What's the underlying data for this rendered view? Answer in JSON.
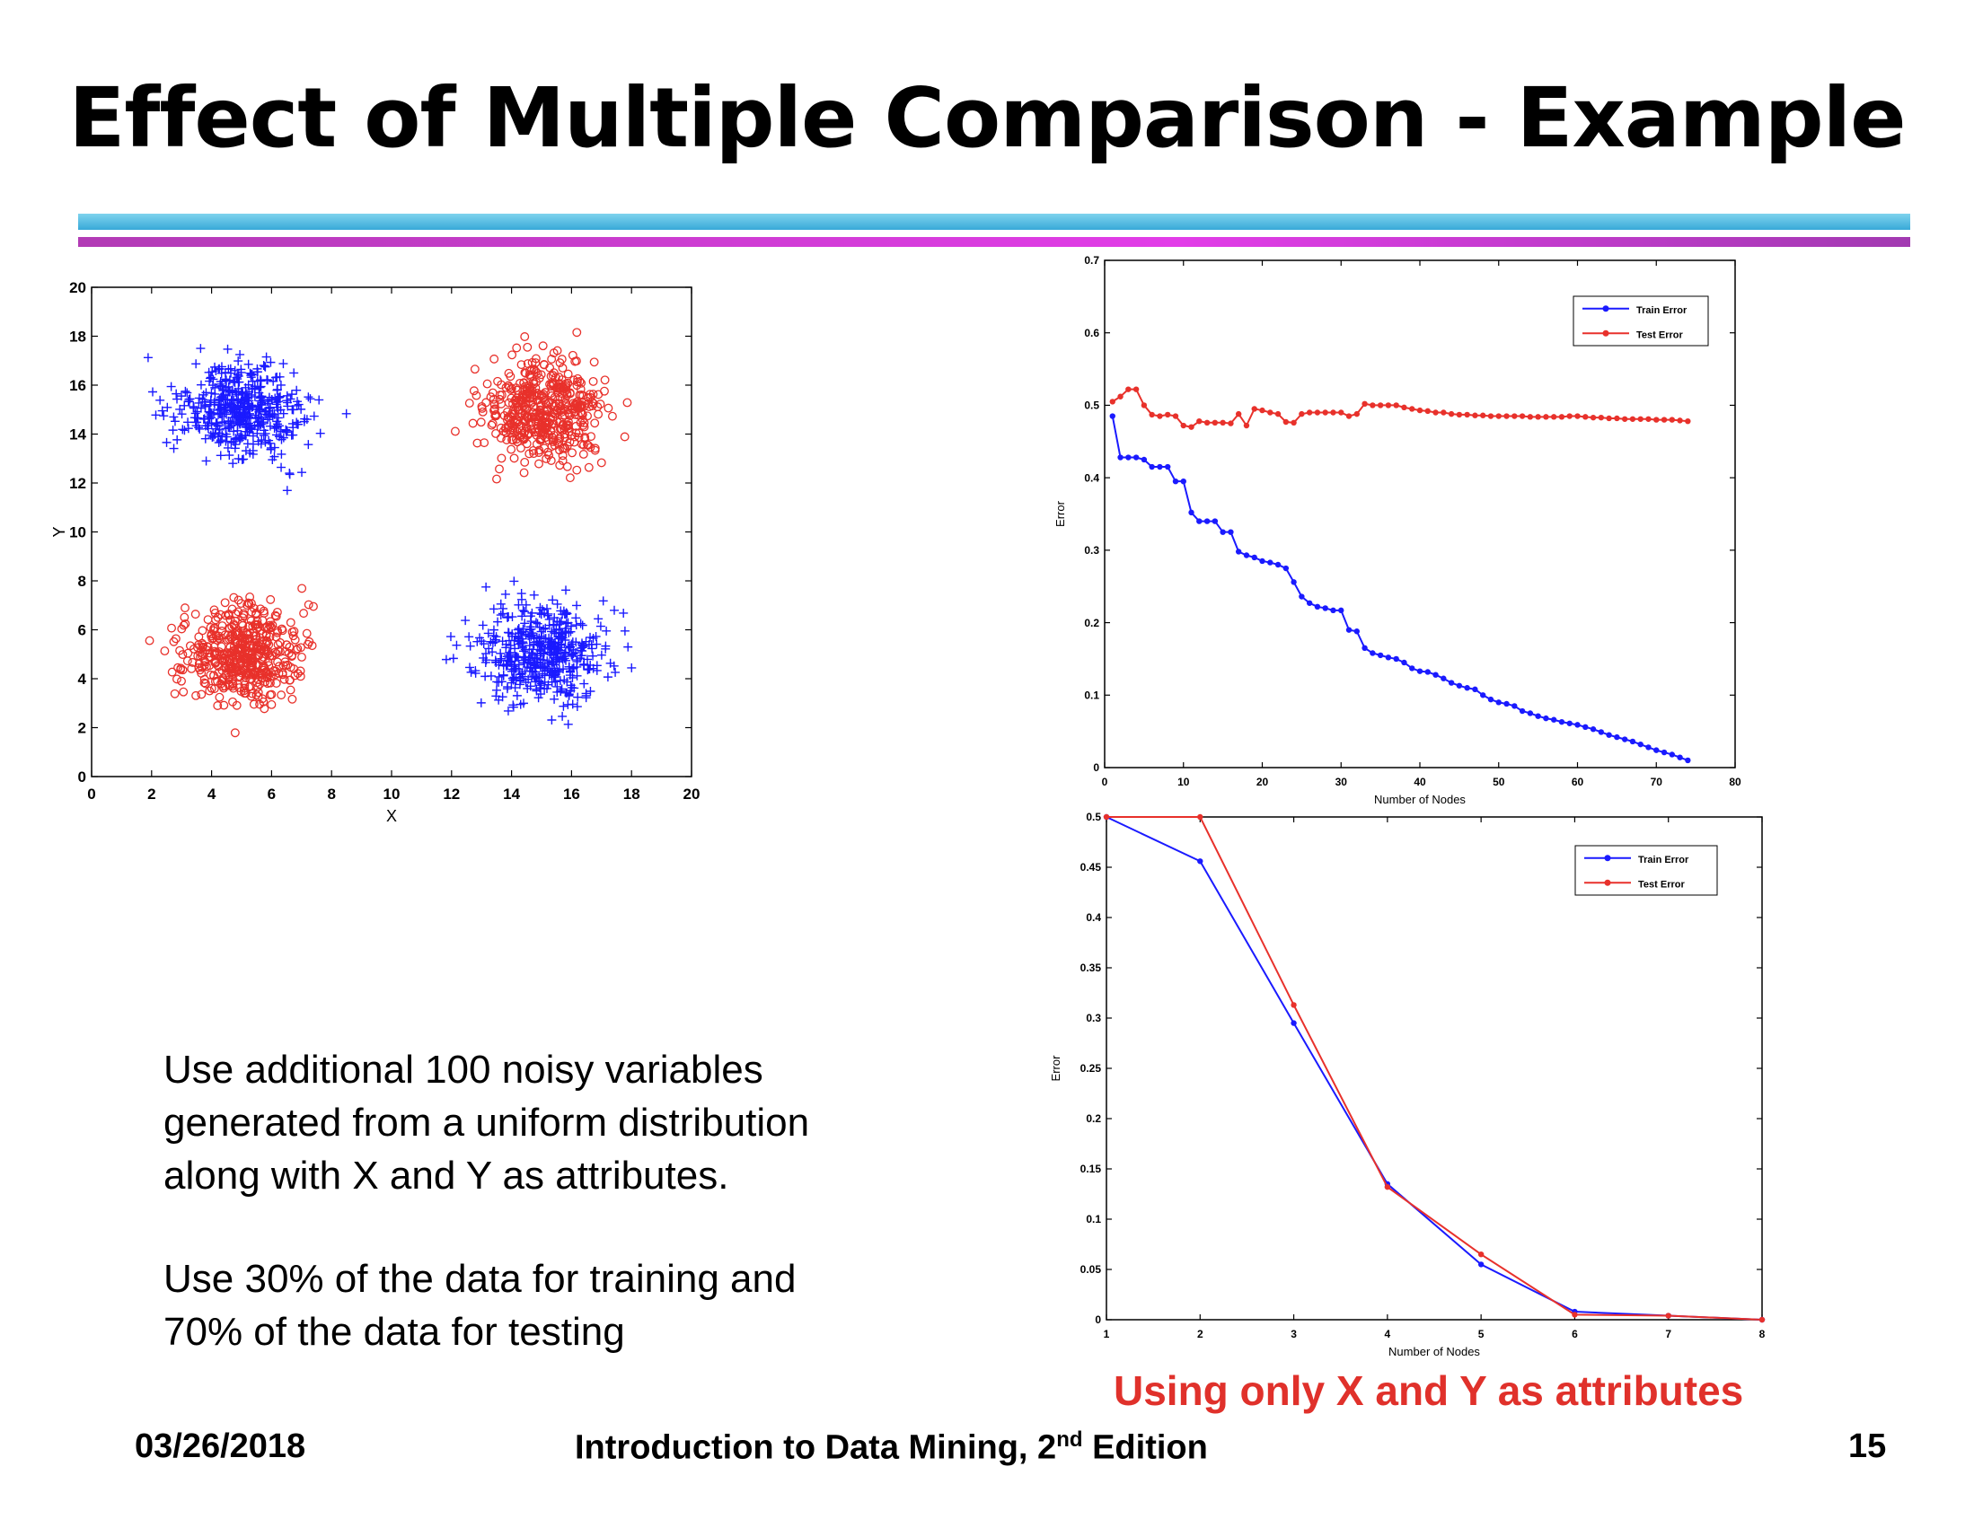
{
  "slide": {
    "title": "Effect of Multiple Comparison - Example",
    "paragraph1": [
      "Use additional 100 noisy variables",
      "generated from a uniform distribution",
      "along with X and Y as attributes."
    ],
    "paragraph2": [
      "Use 30% of the data for training and",
      "70% of the data for testing"
    ],
    "caption": "Using only X and Y as attributes",
    "footer": {
      "date": "03/26/2018",
      "course": "Introduction to Data Mining, 2",
      "course_sup": "nd",
      "course_suffix": " Edition",
      "page": "15"
    }
  },
  "colors": {
    "blue": "#1a1aff",
    "red": "#e8312b"
  },
  "chart_data": [
    {
      "type": "scatter",
      "title": "",
      "xlabel": "X",
      "ylabel": "Y",
      "xlim": [
        0,
        20
      ],
      "ylim": [
        0,
        20
      ],
      "xticks": [
        0,
        2,
        4,
        6,
        8,
        10,
        12,
        14,
        16,
        18,
        20
      ],
      "yticks": [
        0,
        2,
        4,
        6,
        8,
        10,
        12,
        14,
        16,
        18,
        20
      ],
      "grid": false,
      "series": [
        {
          "marker": "plus",
          "color": "#1a1aff",
          "clusters": [
            {
              "center": [
                5,
                15
              ],
              "sd": 1,
              "n": 500
            },
            {
              "center": [
                15,
                5
              ],
              "sd": 1,
              "n": 500
            }
          ]
        },
        {
          "marker": "circle",
          "color": "#e8312b",
          "clusters": [
            {
              "center": [
                15,
                15
              ],
              "sd": 1,
              "n": 500
            },
            {
              "center": [
                5,
                5
              ],
              "sd": 1,
              "n": 500
            }
          ]
        }
      ]
    },
    {
      "type": "line",
      "title": "",
      "xlabel": "Number of Nodes",
      "ylabel": "Error",
      "xlim": [
        0,
        80
      ],
      "ylim": [
        0,
        0.7
      ],
      "xticks": [
        0,
        10,
        20,
        30,
        40,
        50,
        60,
        70,
        80
      ],
      "yticks": [
        0,
        0.1,
        0.2,
        0.3,
        0.4,
        0.5,
        0.6,
        0.7
      ],
      "ytick_labels": [
        "0",
        "0.1",
        "0.2",
        "0.3",
        "0.4",
        "0.5",
        "0.6",
        "0.7"
      ],
      "legend": "top-right",
      "x": [
        1,
        2,
        3,
        4,
        5,
        6,
        7,
        8,
        9,
        10,
        11,
        12,
        13,
        14,
        15,
        16,
        17,
        18,
        19,
        20,
        21,
        22,
        23,
        24,
        25,
        26,
        27,
        28,
        29,
        30,
        31,
        32,
        33,
        34,
        35,
        36,
        37,
        38,
        39,
        40,
        41,
        42,
        43,
        44,
        45,
        46,
        47,
        48,
        49,
        50,
        51,
        52,
        53,
        54,
        55,
        56,
        57,
        58,
        59,
        60,
        61,
        62,
        63,
        64,
        65,
        66,
        67,
        68,
        69,
        70,
        71,
        72,
        73,
        74
      ],
      "series": [
        {
          "name": "Train Error",
          "color": "#1a1aff",
          "values": [
            0.485,
            0.428,
            0.428,
            0.428,
            0.425,
            0.415,
            0.415,
            0.415,
            0.395,
            0.395,
            0.352,
            0.34,
            0.34,
            0.34,
            0.325,
            0.325,
            0.298,
            0.293,
            0.29,
            0.285,
            0.283,
            0.28,
            0.275,
            0.256,
            0.236,
            0.227,
            0.222,
            0.22,
            0.217,
            0.217,
            0.19,
            0.188,
            0.165,
            0.158,
            0.155,
            0.152,
            0.15,
            0.145,
            0.137,
            0.133,
            0.132,
            0.128,
            0.123,
            0.117,
            0.113,
            0.11,
            0.108,
            0.1,
            0.094,
            0.09,
            0.088,
            0.085,
            0.078,
            0.075,
            0.071,
            0.068,
            0.066,
            0.063,
            0.061,
            0.059,
            0.056,
            0.053,
            0.049,
            0.045,
            0.042,
            0.039,
            0.036,
            0.032,
            0.028,
            0.024,
            0.021,
            0.018,
            0.014,
            0.01
          ]
        },
        {
          "name": "Test Error",
          "color": "#e8312b",
          "values": [
            0.505,
            0.512,
            0.522,
            0.522,
            0.5,
            0.487,
            0.485,
            0.487,
            0.485,
            0.472,
            0.47,
            0.478,
            0.476,
            0.476,
            0.476,
            0.475,
            0.488,
            0.472,
            0.495,
            0.493,
            0.49,
            0.488,
            0.477,
            0.476,
            0.488,
            0.49,
            0.49,
            0.49,
            0.49,
            0.49,
            0.485,
            0.488,
            0.502,
            0.5,
            0.5,
            0.5,
            0.5,
            0.497,
            0.495,
            0.493,
            0.492,
            0.49,
            0.49,
            0.488,
            0.487,
            0.487,
            0.486,
            0.486,
            0.485,
            0.485,
            0.485,
            0.485,
            0.485,
            0.484,
            0.484,
            0.484,
            0.484,
            0.484,
            0.485,
            0.485,
            0.484,
            0.483,
            0.483,
            0.482,
            0.482,
            0.481,
            0.481,
            0.481,
            0.481,
            0.48,
            0.48,
            0.48,
            0.479,
            0.478
          ]
        }
      ]
    },
    {
      "type": "line",
      "title": "",
      "xlabel": "Number of Nodes",
      "ylabel": "Error",
      "xlim": [
        1,
        8
      ],
      "ylim": [
        0,
        0.5
      ],
      "xticks": [
        1,
        2,
        3,
        4,
        5,
        6,
        7,
        8
      ],
      "yticks": [
        0,
        0.05,
        0.1,
        0.15,
        0.2,
        0.25,
        0.3,
        0.35,
        0.4,
        0.45,
        0.5
      ],
      "ytick_labels": [
        "0",
        "0.05",
        "0.1",
        "0.15",
        "0.2",
        "0.25",
        "0.3",
        "0.35",
        "0.4",
        "0.45",
        "0.5"
      ],
      "legend": "top-right",
      "x": [
        1,
        2,
        3,
        4,
        5,
        6,
        7,
        8
      ],
      "series": [
        {
          "name": "Train Error",
          "color": "#1a1aff",
          "values": [
            0.5,
            0.456,
            0.295,
            0.135,
            0.055,
            0.008,
            0.004,
            0
          ]
        },
        {
          "name": "Test Error",
          "color": "#e8312b",
          "values": [
            0.5,
            0.5,
            0.313,
            0.132,
            0.065,
            0.005,
            0.004,
            0
          ]
        }
      ]
    }
  ]
}
